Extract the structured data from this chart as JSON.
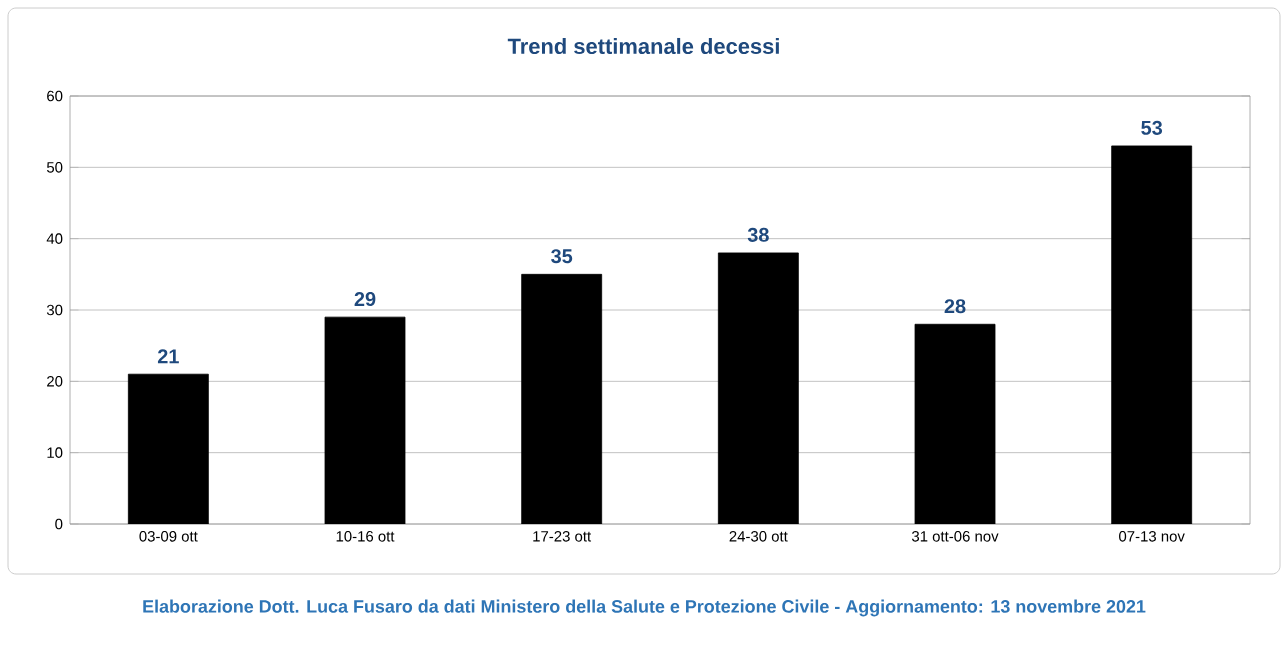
{
  "chart_data": {
    "type": "bar",
    "title": "Trend settimanale decessi",
    "categories": [
      "03-09 ott",
      "10-16 ott",
      "17-23 ott",
      "24-30 ott",
      "31 ott-06 nov",
      "07-13 nov"
    ],
    "values": [
      21,
      29,
      35,
      38,
      28,
      53
    ],
    "color": "#000000",
    "ylim": [
      0,
      60
    ],
    "yticks": [
      0,
      10,
      20,
      30,
      40,
      50,
      60
    ],
    "grid": "y",
    "data_labels": true,
    "annotations": [
      "Elaborazione Dott. Luca Fusaro da dati Ministero della Salute e Protezione Civile - Aggiornamento: 13 novembre 2021"
    ]
  }
}
